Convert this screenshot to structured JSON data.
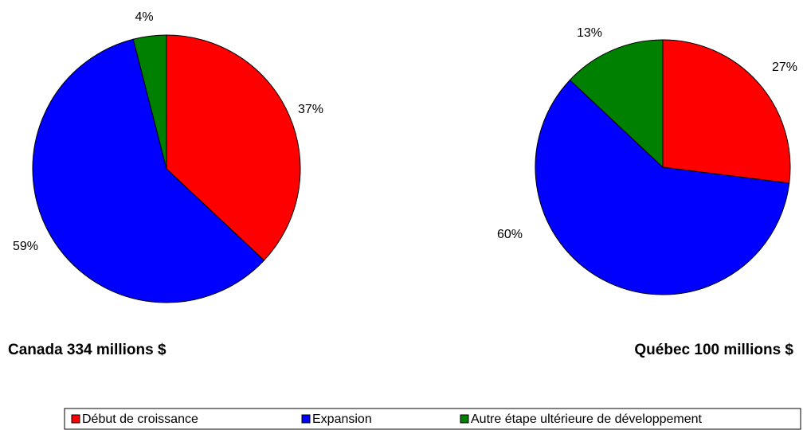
{
  "chart_data": [
    {
      "type": "pie",
      "title": "Canada 334 millions $",
      "values": [
        37,
        59,
        4
      ],
      "value_labels": [
        "37%",
        "59%",
        "4%"
      ]
    },
    {
      "type": "pie",
      "title": "Québec 100 millions $",
      "values": [
        27,
        60,
        13
      ],
      "value_labels": [
        "27%",
        "60%",
        "13%"
      ]
    }
  ],
  "legend": {
    "labels": [
      "Début de croissance",
      "Expansion",
      "Autre étape ultérieure de développement"
    ],
    "colors": [
      "#ff0000",
      "#0000ff",
      "#008000"
    ]
  }
}
